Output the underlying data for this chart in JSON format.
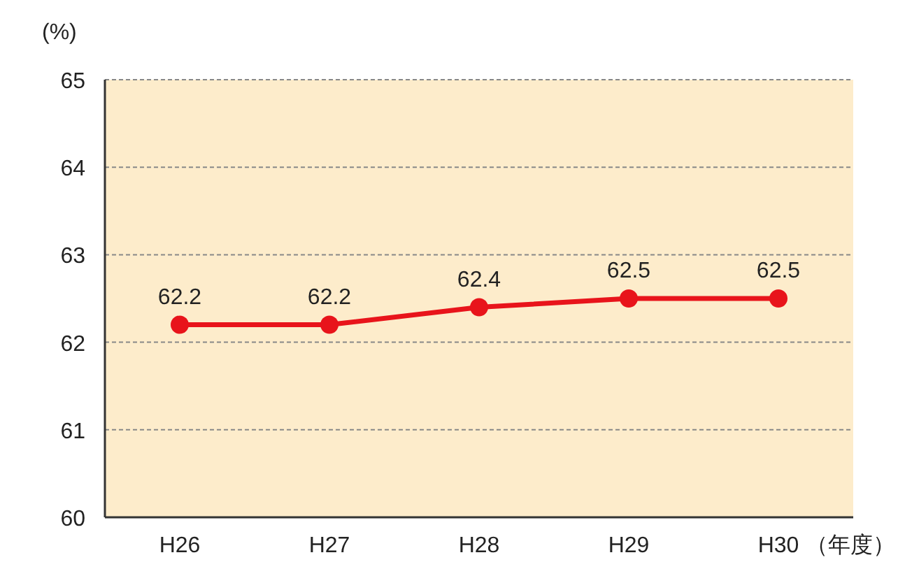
{
  "chart_data": {
    "type": "line",
    "ylabel": "(%)",
    "xlabel": "（年度）",
    "categories": [
      "H26",
      "H27",
      "H28",
      "H29",
      "H30"
    ],
    "series": [
      {
        "color": "#e8141b",
        "values": [
          62.2,
          62.2,
          62.4,
          62.5,
          62.5
        ]
      }
    ],
    "ylim": [
      60,
      65
    ],
    "yticks": [
      60,
      61,
      62,
      63,
      64,
      65
    ],
    "grid": "y",
    "marker": "circle",
    "line_style": "solid",
    "data_labels": true
  }
}
